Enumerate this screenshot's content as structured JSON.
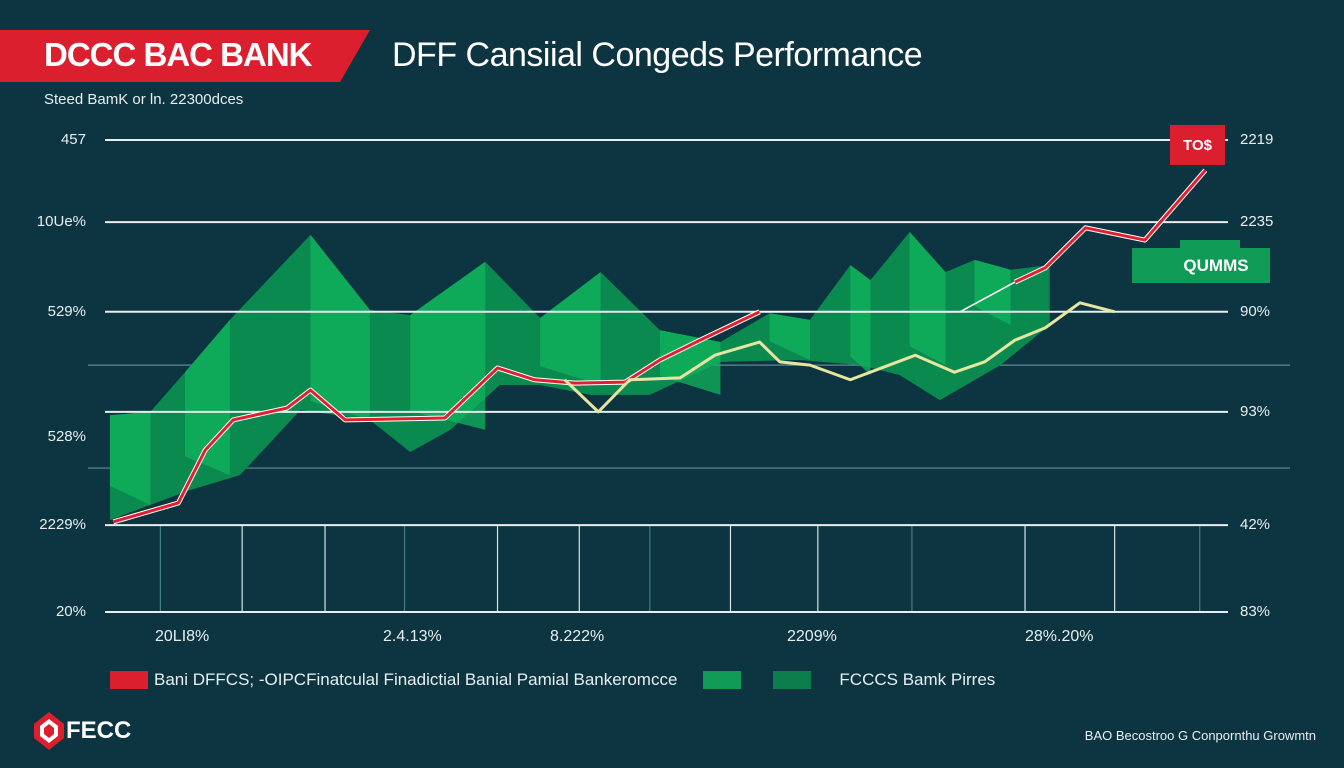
{
  "header": {
    "brand": "DCCC BAC BANK",
    "title": "DFF Cansiial Congeds Performance",
    "subtitle": "Steed BamK or ln. 22300dces"
  },
  "colors": {
    "background": "#0d3541",
    "brand_red": "#dc1f2e",
    "green_light": "#10b45e",
    "green_dark": "#0b7d4c",
    "yellow_line": "#e6e6a0",
    "grid": "#e8eef0"
  },
  "chart_data": {
    "type": "line",
    "title": "DFF Cansiial Congeds Performance",
    "xlim": [
      0,
      100
    ],
    "ylim": [
      0,
      100
    ],
    "grid": true,
    "legend_placement": "bottom",
    "y_ticks_left": [
      "457",
      "10Ue%",
      "529%",
      "528%",
      "2229%",
      "20%"
    ],
    "y_ticks_right": [
      "2219",
      "2235",
      "90%",
      "93%",
      "42%",
      "83%"
    ],
    "x_ticks": [
      "20LI8%",
      "2.4.13%",
      "8.222%",
      "2209%",
      "28%.20%"
    ],
    "series": [
      {
        "name": "Bani DFFCS; -OIPCFinatculal Finadictial Banial Pamial Bankeromcce",
        "color": "#e0202e",
        "segments": [
          [
            [
              0.3,
              19.1
            ],
            [
              6.1,
              23.1
            ],
            [
              8.5,
              34.3
            ],
            [
              11.0,
              40.7
            ],
            [
              15.8,
              43.2
            ],
            [
              17.9,
              47.0
            ],
            [
              21.0,
              40.7
            ],
            [
              29.9,
              41.1
            ],
            [
              34.6,
              51.7
            ],
            [
              37.9,
              49.2
            ],
            [
              41.5,
              48.5
            ],
            [
              46.0,
              48.7
            ],
            [
              49.1,
              53.4
            ],
            [
              52.7,
              57.6
            ],
            [
              58.0,
              63.6
            ]
          ],
          [
            [
              80.8,
              69.9
            ],
            [
              83.5,
              72.9
            ],
            [
              87.1,
              81.4
            ],
            [
              92.4,
              78.8
            ],
            [
              97.8,
              93.6
            ]
          ]
        ]
      },
      {
        "color": "#e6e6a0",
        "segments": [
          [
            [
              40.6,
              49.2
            ],
            [
              43.6,
              42.4
            ],
            [
              46.4,
              49.2
            ],
            [
              50.9,
              49.6
            ],
            [
              54.0,
              54.4
            ],
            [
              58.0,
              57.2
            ],
            [
              59.8,
              53.0
            ],
            [
              62.5,
              52.3
            ],
            [
              66.1,
              49.2
            ],
            [
              71.9,
              54.4
            ],
            [
              75.4,
              50.8
            ],
            [
              78.1,
              53.0
            ],
            [
              80.8,
              57.6
            ],
            [
              83.5,
              60.2
            ],
            [
              86.6,
              65.5
            ],
            [
              89.7,
              63.6
            ]
          ]
        ]
      },
      {
        "color": "#ffffff",
        "segments": [
          [
            [
              58.0,
              63.6
            ],
            [
              75.9,
              63.6
            ],
            [
              80.8,
              69.9
            ]
          ]
        ]
      }
    ],
    "area": {
      "name": "FCCCS Bamk Pirres",
      "top": [
        [
          0,
          41.7
        ],
        [
          3.6,
          42.4
        ],
        [
          6.7,
          50.8
        ],
        [
          10.7,
          61.9
        ],
        [
          17.9,
          79.9
        ],
        [
          23.2,
          64.0
        ],
        [
          26.8,
          62.9
        ],
        [
          33.5,
          74.2
        ],
        [
          38.4,
          62.3
        ],
        [
          43.8,
          72.0
        ],
        [
          49.1,
          59.7
        ],
        [
          54.5,
          57.2
        ],
        [
          58.9,
          63.3
        ],
        [
          62.5,
          61.9
        ],
        [
          66.1,
          73.5
        ],
        [
          67.9,
          70.3
        ],
        [
          71.4,
          80.5
        ],
        [
          74.6,
          72.0
        ],
        [
          77.2,
          74.6
        ],
        [
          80.4,
          72.5
        ],
        [
          83.9,
          73.5
        ]
      ],
      "bottom": [
        [
          83.9,
          60.8
        ],
        [
          79.5,
          52.3
        ],
        [
          74.1,
          44.9
        ],
        [
          70.5,
          50.2
        ],
        [
          67.0,
          52.3
        ],
        [
          61.6,
          53.4
        ],
        [
          54.5,
          53.0
        ],
        [
          48.2,
          46.0
        ],
        [
          42.9,
          46.0
        ],
        [
          38.4,
          48.1
        ],
        [
          34.8,
          48.1
        ],
        [
          30.4,
          38.6
        ],
        [
          26.8,
          33.9
        ],
        [
          23.2,
          40.7
        ],
        [
          17.0,
          42.8
        ],
        [
          11.6,
          29.0
        ],
        [
          7.1,
          25.8
        ],
        [
          3.6,
          22.7
        ],
        [
          0,
          19.5
        ]
      ]
    },
    "gridlines_major": [
      100,
      82.6,
      63.6,
      42.4,
      18.4,
      0
    ],
    "gridlines_minor": [
      52.3,
      30.5
    ],
    "annotations": [
      "TO$",
      "QUMMS"
    ]
  },
  "legend": {
    "item1": "Bani DFFCS; -OIPCFinatculal Finadictial Banial Pamial Bankeromcce",
    "item2": "FCCCS Bamk Pirres"
  },
  "footer": {
    "logo": "FECC",
    "note": "BAO Becostroo G Conpornthu Growmtn"
  }
}
